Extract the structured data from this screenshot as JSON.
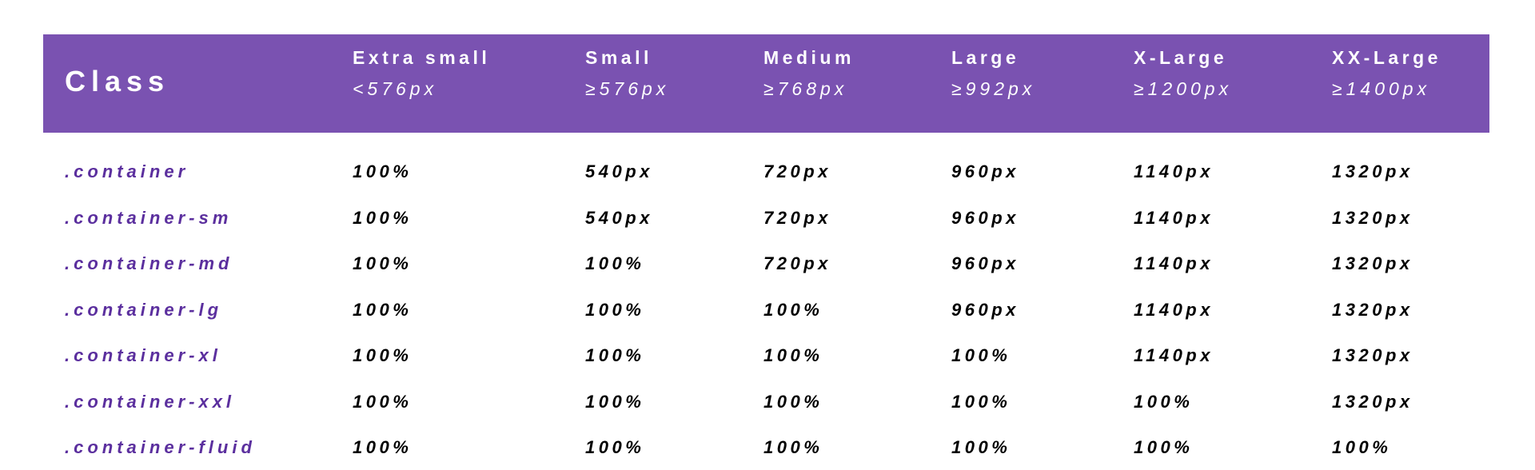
{
  "header": {
    "class_label": "Class",
    "columns": [
      {
        "name": "Extra small",
        "breakpoint": "<576px"
      },
      {
        "name": "Small",
        "breakpoint": "≥576px"
      },
      {
        "name": "Medium",
        "breakpoint": "≥768px"
      },
      {
        "name": "Large",
        "breakpoint": "≥992px"
      },
      {
        "name": "X-Large",
        "breakpoint": "≥1200px"
      },
      {
        "name": "XX-Large",
        "breakpoint": "≥1400px"
      }
    ]
  },
  "rows": [
    {
      "class": ".container",
      "values": [
        "100%",
        "540px",
        "720px",
        "960px",
        "1140px",
        "1320px"
      ]
    },
    {
      "class": ".container-sm",
      "values": [
        "100%",
        "540px",
        "720px",
        "960px",
        "1140px",
        "1320px"
      ]
    },
    {
      "class": ".container-md",
      "values": [
        "100%",
        "100%",
        "720px",
        "960px",
        "1140px",
        "1320px"
      ]
    },
    {
      "class": ".container-lg",
      "values": [
        "100%",
        "100%",
        "100%",
        "960px",
        "1140px",
        "1320px"
      ]
    },
    {
      "class": ".container-xl",
      "values": [
        "100%",
        "100%",
        "100%",
        "100%",
        "1140px",
        "1320px"
      ]
    },
    {
      "class": ".container-xxl",
      "values": [
        "100%",
        "100%",
        "100%",
        "100%",
        "100%",
        "1320px"
      ]
    },
    {
      "class": ".container-fluid",
      "values": [
        "100%",
        "100%",
        "100%",
        "100%",
        "100%",
        "100%"
      ]
    }
  ],
  "colors": {
    "header_bg": "#7A52B1",
    "class_text": "#5B2F9E"
  }
}
